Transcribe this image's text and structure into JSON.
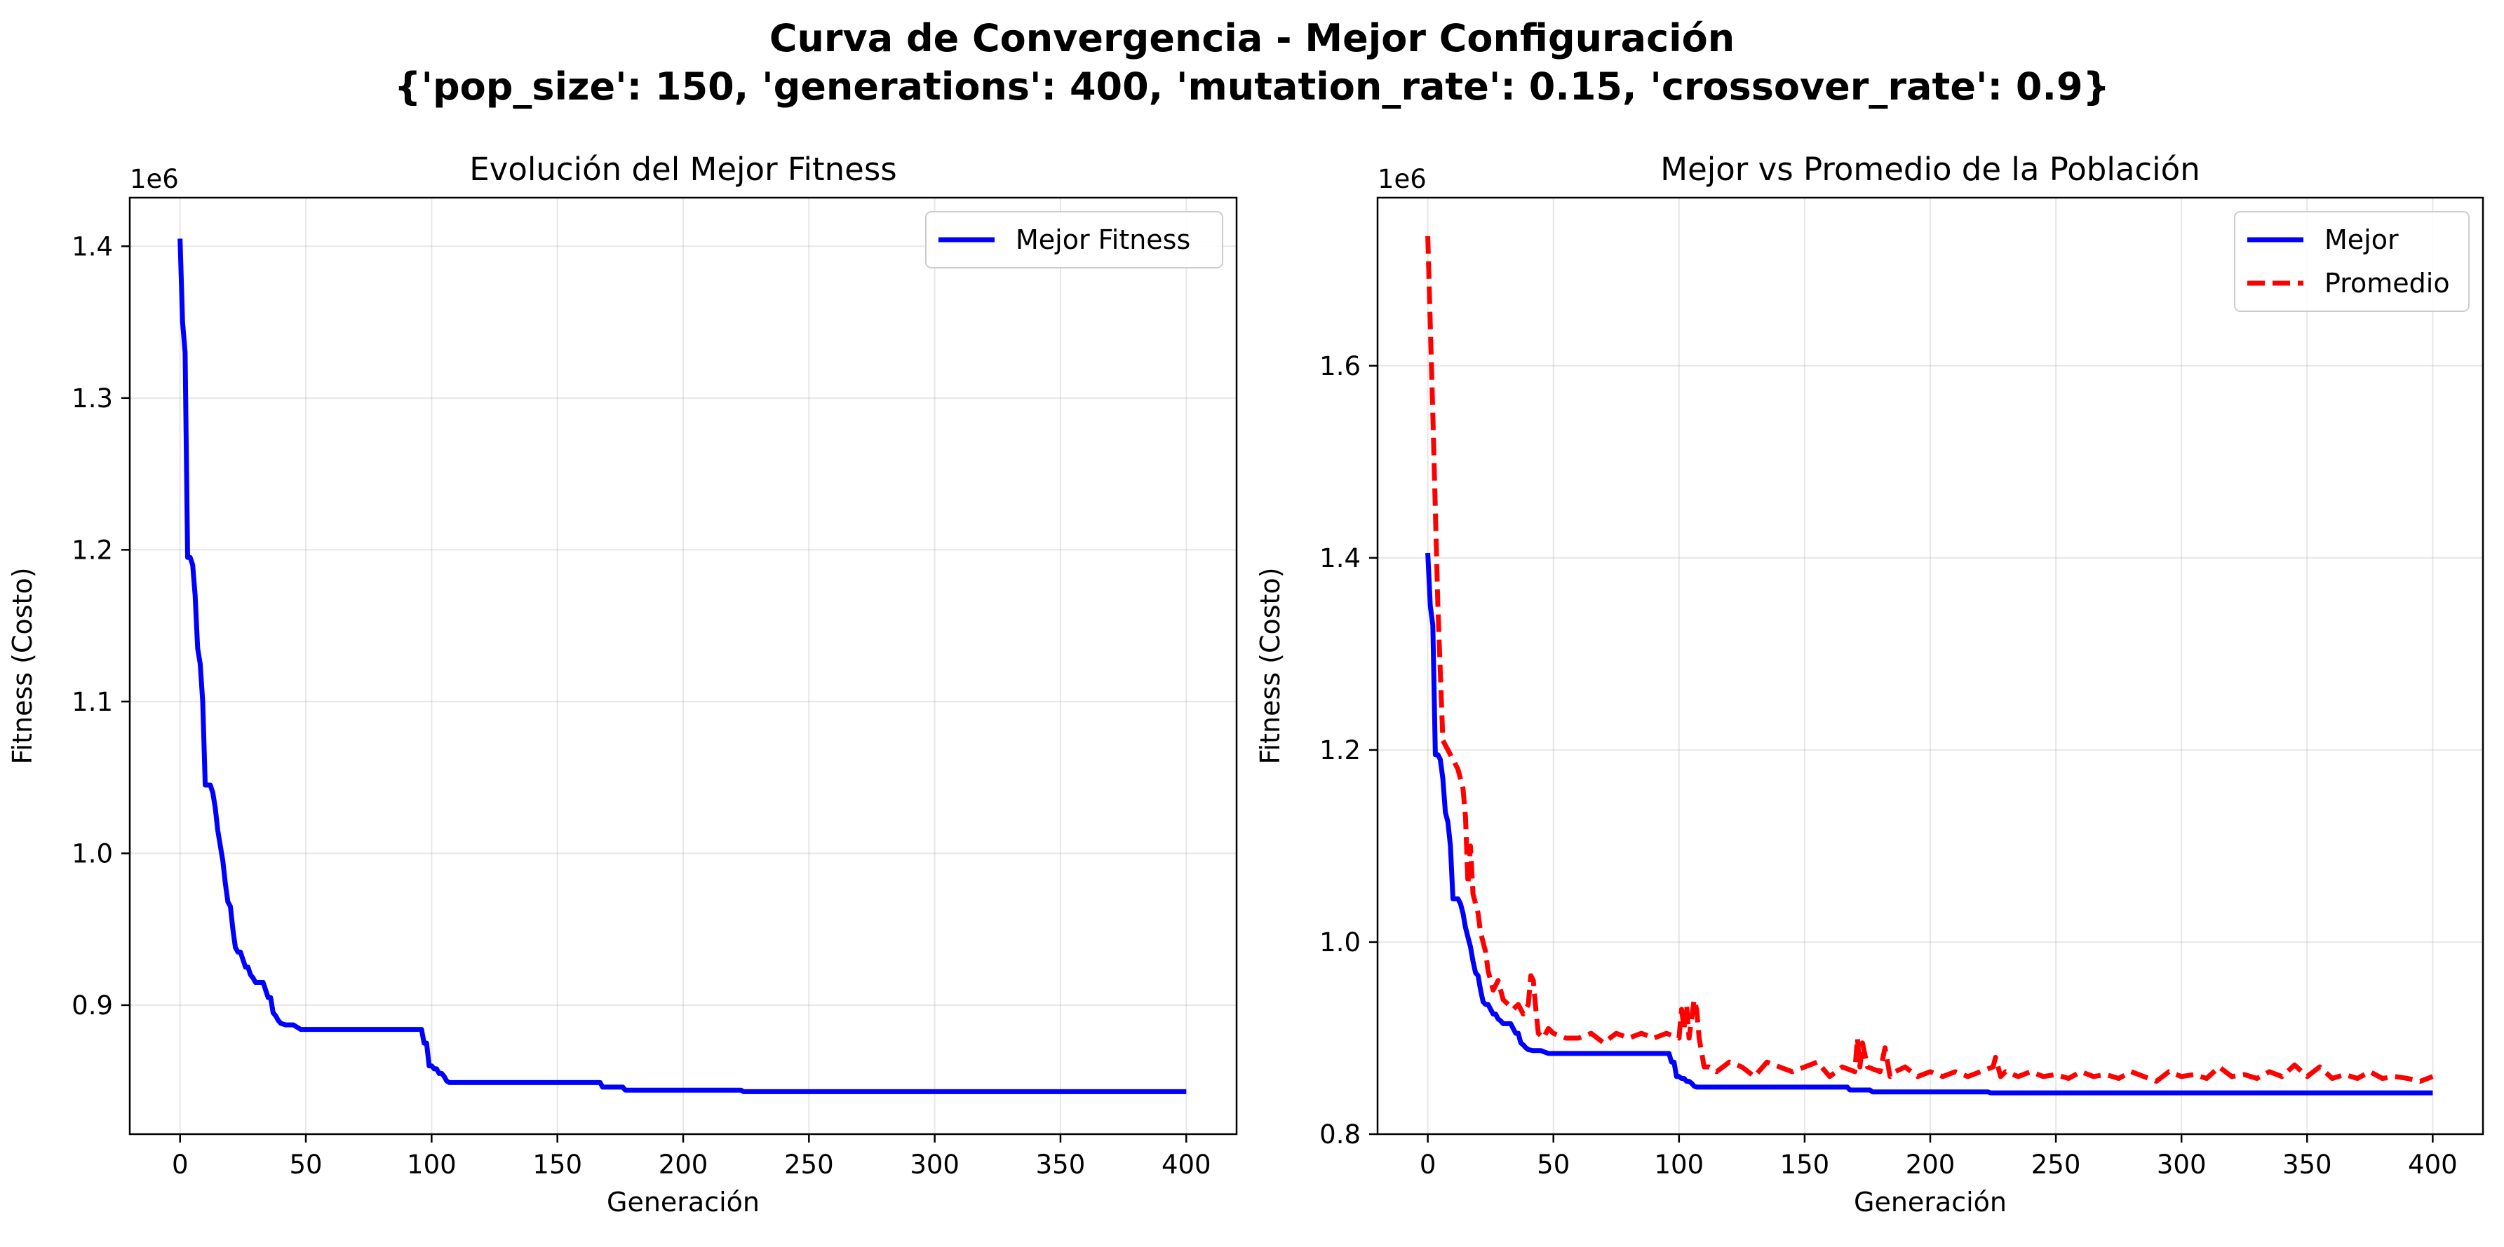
{
  "figure": {
    "title_line1": "Curva de Convergencia - Mejor Configuración",
    "title_line2": "{'pop_size': 150, 'generations': 400, 'mutation_rate': 0.15, 'crossover_rate': 0.9}"
  },
  "colors": {
    "best": "#0000ff",
    "average": "#ff0000"
  },
  "chart_data": [
    {
      "type": "line",
      "title": "Evolución del Mejor Fitness",
      "xlabel": "Generación",
      "ylabel": "Fitness (Costo)",
      "y_offset_label": "1e6",
      "xlim": [
        -20,
        420
      ],
      "ylim": [
        0.815,
        1.432
      ],
      "xticks": [
        0,
        50,
        100,
        150,
        200,
        250,
        300,
        350,
        400
      ],
      "yticks": [
        0.9,
        1.0,
        1.1,
        1.2,
        1.3,
        1.4
      ],
      "ytick_labels": [
        "0.9",
        "1.0",
        "1.1",
        "1.2",
        "1.3",
        "1.4"
      ],
      "grid": true,
      "legend_position": "upper right",
      "series": [
        {
          "name": "Mejor Fitness",
          "color": "#0000ff",
          "style": "solid",
          "x": [
            0,
            1,
            2,
            3,
            4,
            5,
            6,
            7,
            8,
            9,
            10,
            11,
            12,
            13,
            14,
            15,
            16,
            17,
            18,
            19,
            20,
            21,
            22,
            23,
            24,
            25,
            26,
            27,
            28,
            29,
            30,
            31,
            32,
            33,
            34,
            35,
            36,
            37,
            38,
            39,
            40,
            42,
            44,
            45,
            46,
            48,
            50,
            96,
            97,
            98,
            99,
            100,
            101,
            102,
            103,
            104,
            105,
            106,
            107,
            167,
            168,
            176,
            177,
            223,
            224,
            225,
            400
          ],
          "y": [
            1.405,
            1.35,
            1.33,
            1.195,
            1.195,
            1.19,
            1.17,
            1.135,
            1.125,
            1.1,
            1.045,
            1.045,
            1.045,
            1.04,
            1.03,
            1.015,
            1.005,
            0.995,
            0.98,
            0.968,
            0.965,
            0.95,
            0.938,
            0.935,
            0.935,
            0.93,
            0.925,
            0.925,
            0.92,
            0.918,
            0.915,
            0.915,
            0.915,
            0.915,
            0.91,
            0.905,
            0.905,
            0.895,
            0.893,
            0.89,
            0.888,
            0.887,
            0.887,
            0.887,
            0.886,
            0.884,
            0.884,
            0.884,
            0.875,
            0.875,
            0.86,
            0.86,
            0.858,
            0.858,
            0.855,
            0.855,
            0.853,
            0.85,
            0.849,
            0.849,
            0.846,
            0.846,
            0.844,
            0.844,
            0.843,
            0.843,
            0.843
          ]
        }
      ]
    },
    {
      "type": "line",
      "title": "Mejor vs Promedio de la Población",
      "xlabel": "Generación",
      "ylabel": "Fitness (Costo)",
      "y_offset_label": "1e6",
      "xlim": [
        -20,
        420
      ],
      "ylim": [
        0.8,
        1.775
      ],
      "xticks": [
        0,
        50,
        100,
        150,
        200,
        250,
        300,
        350,
        400
      ],
      "yticks": [
        0.8,
        1.0,
        1.2,
        1.4,
        1.6
      ],
      "ytick_labels": [
        "0.8",
        "1.0",
        "1.2",
        "1.4",
        "1.6"
      ],
      "grid": true,
      "legend_position": "upper right",
      "series": [
        {
          "name": "Mejor",
          "color": "#0000ff",
          "style": "solid",
          "x": [
            0,
            1,
            2,
            3,
            4,
            5,
            6,
            7,
            8,
            9,
            10,
            11,
            12,
            13,
            14,
            15,
            16,
            17,
            18,
            19,
            20,
            21,
            22,
            23,
            24,
            25,
            26,
            27,
            28,
            29,
            30,
            31,
            32,
            33,
            34,
            35,
            36,
            37,
            38,
            39,
            40,
            42,
            44,
            45,
            46,
            48,
            50,
            96,
            97,
            98,
            99,
            100,
            101,
            102,
            103,
            104,
            105,
            106,
            107,
            167,
            168,
            176,
            177,
            223,
            224,
            225,
            400
          ],
          "y": [
            1.405,
            1.35,
            1.33,
            1.195,
            1.195,
            1.19,
            1.17,
            1.135,
            1.125,
            1.1,
            1.045,
            1.045,
            1.045,
            1.04,
            1.03,
            1.015,
            1.005,
            0.995,
            0.98,
            0.968,
            0.965,
            0.95,
            0.938,
            0.935,
            0.935,
            0.93,
            0.925,
            0.925,
            0.92,
            0.918,
            0.915,
            0.915,
            0.915,
            0.915,
            0.91,
            0.905,
            0.905,
            0.895,
            0.893,
            0.89,
            0.888,
            0.887,
            0.887,
            0.887,
            0.886,
            0.884,
            0.884,
            0.884,
            0.875,
            0.875,
            0.86,
            0.86,
            0.858,
            0.858,
            0.855,
            0.855,
            0.853,
            0.85,
            0.849,
            0.849,
            0.846,
            0.846,
            0.844,
            0.844,
            0.843,
            0.843,
            0.843
          ]
        },
        {
          "name": "Promedio",
          "color": "#ff0000",
          "style": "dashed",
          "x": [
            0,
            2,
            4,
            6,
            8,
            10,
            12,
            14,
            15,
            16,
            17,
            18,
            19,
            20,
            21,
            22,
            23,
            24,
            26,
            28,
            30,
            32,
            34,
            36,
            38,
            40,
            41,
            42,
            43,
            44,
            46,
            48,
            50,
            55,
            60,
            65,
            70,
            75,
            80,
            85,
            90,
            95,
            100,
            101,
            102,
            103,
            104,
            105,
            106,
            107,
            108,
            110,
            112,
            115,
            120,
            125,
            130,
            135,
            140,
            145,
            150,
            155,
            160,
            165,
            170,
            171,
            172,
            173,
            175,
            180,
            182,
            184,
            186,
            190,
            195,
            200,
            205,
            210,
            215,
            220,
            225,
            226,
            228,
            230,
            235,
            240,
            245,
            250,
            255,
            260,
            265,
            270,
            275,
            280,
            285,
            290,
            295,
            300,
            305,
            310,
            315,
            320,
            325,
            330,
            335,
            340,
            345,
            350,
            355,
            360,
            365,
            370,
            375,
            380,
            385,
            390,
            395,
            400
          ],
          "y": [
            1.735,
            1.55,
            1.35,
            1.21,
            1.2,
            1.19,
            1.18,
            1.16,
            1.13,
            1.06,
            1.1,
            1.05,
            1.04,
            1.03,
            1.01,
            1.0,
            0.99,
            0.97,
            0.95,
            0.96,
            0.94,
            0.935,
            0.93,
            0.935,
            0.925,
            0.935,
            0.965,
            0.96,
            0.93,
            0.905,
            0.9,
            0.91,
            0.905,
            0.9,
            0.9,
            0.905,
            0.895,
            0.905,
            0.9,
            0.905,
            0.9,
            0.905,
            0.9,
            0.93,
            0.91,
            0.935,
            0.9,
            0.92,
            0.94,
            0.93,
            0.9,
            0.87,
            0.87,
            0.865,
            0.875,
            0.87,
            0.86,
            0.875,
            0.87,
            0.865,
            0.87,
            0.875,
            0.86,
            0.87,
            0.865,
            0.9,
            0.87,
            0.895,
            0.87,
            0.865,
            0.89,
            0.86,
            0.865,
            0.87,
            0.86,
            0.865,
            0.86,
            0.865,
            0.86,
            0.865,
            0.87,
            0.88,
            0.86,
            0.865,
            0.86,
            0.865,
            0.86,
            0.862,
            0.858,
            0.865,
            0.86,
            0.862,
            0.858,
            0.865,
            0.86,
            0.855,
            0.865,
            0.86,
            0.862,
            0.858,
            0.87,
            0.86,
            0.862,
            0.858,
            0.865,
            0.86,
            0.872,
            0.86,
            0.87,
            0.858,
            0.862,
            0.858,
            0.865,
            0.858,
            0.86,
            0.858,
            0.855,
            0.86
          ]
        }
      ]
    }
  ]
}
